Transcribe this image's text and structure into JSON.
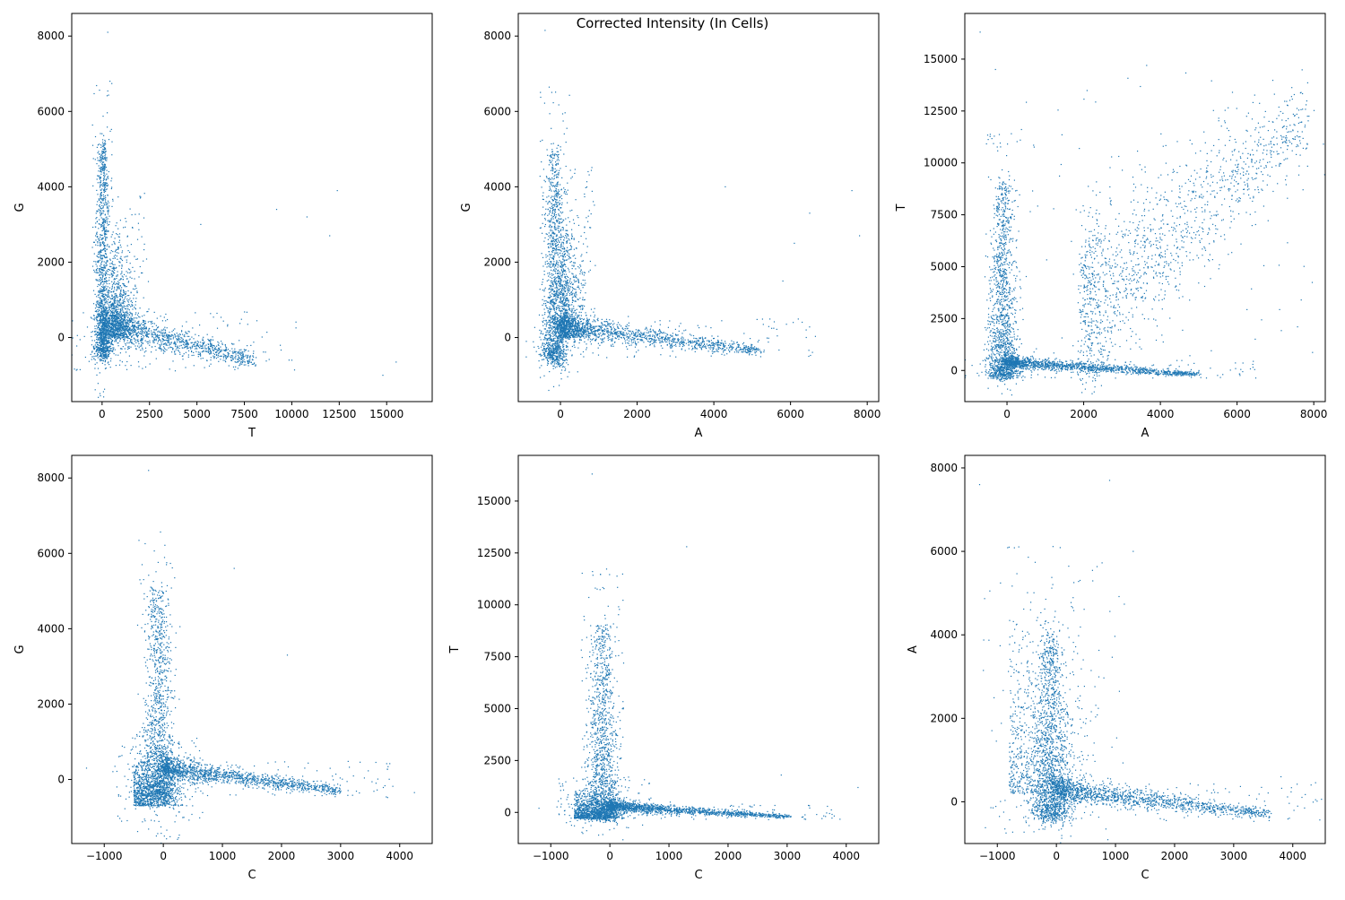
{
  "figure": {
    "suptitle": "Corrected Intensity (In Cells)",
    "point_color": "#1f77b4"
  },
  "chart_data": [
    {
      "type": "scatter",
      "panel": "top-left",
      "xlabel": "T",
      "ylabel": "G",
      "xlim": [
        -1600,
        17400
      ],
      "ylim": [
        -1700,
        8600
      ],
      "xticks": [
        0,
        2500,
        5000,
        7500,
        10000,
        12500,
        15000
      ],
      "yticks": [
        0,
        2000,
        4000,
        6000,
        8000
      ],
      "x_tick_labels": [
        "0",
        "2500",
        "5000",
        "7500",
        "10000",
        "12500",
        "15000"
      ],
      "y_tick_labels": [
        "0",
        "2000",
        "4000",
        "6000",
        "8000"
      ],
      "grid": false,
      "clusters": [
        {
          "name": "",
          "shape": "vertical",
          "x": [
            -300,
            400
          ],
          "y": [
            -400,
            5200
          ]
        },
        {
          "name": "",
          "shape": "diagonal",
          "x": [
            0,
            8000
          ],
          "y": [
            400,
            -600
          ]
        },
        {
          "name": "",
          "shape": "blob",
          "x": [
            500,
            2000
          ],
          "y": [
            0,
            3000
          ]
        }
      ],
      "outliers": [
        [
          12400,
          3900
        ],
        [
          14800,
          -1000
        ],
        [
          15500,
          -650
        ],
        [
          300,
          8100
        ],
        [
          10800,
          3200
        ],
        [
          9200,
          3400
        ],
        [
          5200,
          3000
        ],
        [
          12000,
          2700
        ]
      ]
    },
    {
      "type": "scatter",
      "panel": "top-middle",
      "xlabel": "A",
      "ylabel": "G",
      "xlim": [
        -1100,
        8300
      ],
      "ylim": [
        -1700,
        8600
      ],
      "xticks": [
        0,
        2000,
        4000,
        6000,
        8000
      ],
      "yticks": [
        0,
        2000,
        4000,
        6000,
        8000
      ],
      "x_tick_labels": [
        "0",
        "2000",
        "4000",
        "6000",
        "8000"
      ],
      "y_tick_labels": [
        "0",
        "2000",
        "4000",
        "6000",
        "8000"
      ],
      "grid": false,
      "clusters": [
        {
          "name": "",
          "shape": "vertical",
          "x": [
            -400,
            100
          ],
          "y": [
            -500,
            5000
          ]
        },
        {
          "name": "",
          "shape": "diagonal",
          "x": [
            0,
            5200
          ],
          "y": [
            300,
            -350
          ]
        },
        {
          "name": "",
          "shape": "blob",
          "x": [
            0,
            700
          ],
          "y": [
            0,
            3500
          ]
        }
      ],
      "outliers": [
        [
          7600,
          3900
        ],
        [
          7800,
          2700
        ],
        [
          6500,
          3300
        ],
        [
          -400,
          8150
        ],
        [
          5800,
          1500
        ],
        [
          4300,
          4000
        ],
        [
          6100,
          2500
        ]
      ]
    },
    {
      "type": "scatter",
      "panel": "top-right",
      "xlabel": "A",
      "ylabel": "T",
      "xlim": [
        -1100,
        8300
      ],
      "ylim": [
        -1500,
        17200
      ],
      "xticks": [
        0,
        2000,
        4000,
        6000,
        8000
      ],
      "yticks": [
        0,
        2500,
        5000,
        7500,
        10000,
        12500,
        15000
      ],
      "x_tick_labels": [
        "0",
        "2000",
        "4000",
        "6000",
        "8000"
      ],
      "y_tick_labels": [
        "0",
        "2500",
        "5000",
        "7500",
        "10000",
        "12500",
        "15000"
      ],
      "grid": false,
      "clusters": [
        {
          "name": "",
          "shape": "vertical",
          "x": [
            -400,
            200
          ],
          "y": [
            -200,
            9000
          ]
        },
        {
          "name": "",
          "shape": "diagonal",
          "x": [
            0,
            5000
          ],
          "y": [
            400,
            -200
          ]
        },
        {
          "name": "",
          "shape": "diagonal",
          "x": [
            2000,
            7800
          ],
          "y": [
            3000,
            12000
          ]
        }
      ],
      "outliers": [
        [
          -700,
          16300
        ],
        [
          7800,
          12800
        ],
        [
          7200,
          10500
        ],
        [
          -300,
          14500
        ],
        [
          7700,
          11500
        ],
        [
          6500,
          9500
        ]
      ]
    },
    {
      "type": "scatter",
      "panel": "bottom-left",
      "xlabel": "C",
      "ylabel": "G",
      "xlim": [
        -1550,
        4550
      ],
      "ylim": [
        -1700,
        8600
      ],
      "xticks": [
        -1000,
        0,
        1000,
        2000,
        3000,
        4000
      ],
      "yticks": [
        0,
        2000,
        4000,
        6000,
        8000
      ],
      "x_tick_labels": [
        "−1000",
        "0",
        "1000",
        "2000",
        "3000",
        "4000"
      ],
      "y_tick_labels": [
        "0",
        "2000",
        "4000",
        "6000",
        "8000"
      ],
      "grid": false,
      "clusters": [
        {
          "name": "",
          "shape": "vertical",
          "x": [
            -300,
            150
          ],
          "y": [
            -400,
            5000
          ]
        },
        {
          "name": "",
          "shape": "diagonal",
          "x": [
            0,
            3000
          ],
          "y": [
            300,
            -300
          ]
        },
        {
          "name": "",
          "shape": "blob",
          "x": [
            -500,
            400
          ],
          "y": [
            -700,
            800
          ]
        }
      ],
      "outliers": [
        [
          4250,
          -350
        ],
        [
          -1300,
          300
        ],
        [
          -250,
          8200
        ],
        [
          2100,
          3300
        ],
        [
          3600,
          -100
        ],
        [
          1200,
          5600
        ]
      ]
    },
    {
      "type": "scatter",
      "panel": "bottom-middle",
      "xlabel": "C",
      "ylabel": "T",
      "xlim": [
        -1550,
        4550
      ],
      "ylim": [
        -1500,
        17200
      ],
      "xticks": [
        -1000,
        0,
        1000,
        2000,
        3000,
        4000
      ],
      "yticks": [
        0,
        2500,
        5000,
        7500,
        10000,
        12500,
        15000
      ],
      "x_tick_labels": [
        "−1000",
        "0",
        "1000",
        "2000",
        "3000",
        "4000"
      ],
      "y_tick_labels": [
        "0",
        "2500",
        "5000",
        "7500",
        "10000",
        "12500",
        "15000"
      ],
      "grid": false,
      "clusters": [
        {
          "name": "",
          "shape": "vertical",
          "x": [
            -350,
            100
          ],
          "y": [
            -200,
            9000
          ]
        },
        {
          "name": "",
          "shape": "diagonal",
          "x": [
            0,
            3000
          ],
          "y": [
            300,
            -200
          ]
        },
        {
          "name": "",
          "shape": "blob",
          "x": [
            -600,
            400
          ],
          "y": [
            -300,
            1200
          ]
        }
      ],
      "outliers": [
        [
          -300,
          16300
        ],
        [
          4200,
          1200
        ],
        [
          1300,
          12800
        ],
        [
          -1200,
          200
        ],
        [
          2900,
          1800
        ],
        [
          3500,
          -100
        ]
      ]
    },
    {
      "type": "scatter",
      "panel": "bottom-right",
      "xlabel": "C",
      "ylabel": "A",
      "xlim": [
        -1550,
        4550
      ],
      "ylim": [
        -1000,
        8300
      ],
      "xticks": [
        -1000,
        0,
        1000,
        2000,
        3000,
        4000
      ],
      "yticks": [
        0,
        2000,
        4000,
        6000,
        8000
      ],
      "x_tick_labels": [
        "−1000",
        "0",
        "1000",
        "2000",
        "3000",
        "4000"
      ],
      "y_tick_labels": [
        "0",
        "2000",
        "4000",
        "6000",
        "8000"
      ],
      "grid": false,
      "clusters": [
        {
          "name": "",
          "shape": "vertical",
          "x": [
            -350,
            150
          ],
          "y": [
            -300,
            4000
          ]
        },
        {
          "name": "",
          "shape": "diagonal",
          "x": [
            0,
            3600
          ],
          "y": [
            300,
            -300
          ]
        },
        {
          "name": "",
          "shape": "blob",
          "x": [
            -800,
            700
          ],
          "y": [
            200,
            4800
          ]
        }
      ],
      "outliers": [
        [
          -1300,
          7600
        ],
        [
          900,
          7700
        ],
        [
          4200,
          -150
        ],
        [
          3600,
          -450
        ],
        [
          -800,
          6100
        ],
        [
          1300,
          6000
        ],
        [
          3800,
          600
        ]
      ]
    }
  ]
}
